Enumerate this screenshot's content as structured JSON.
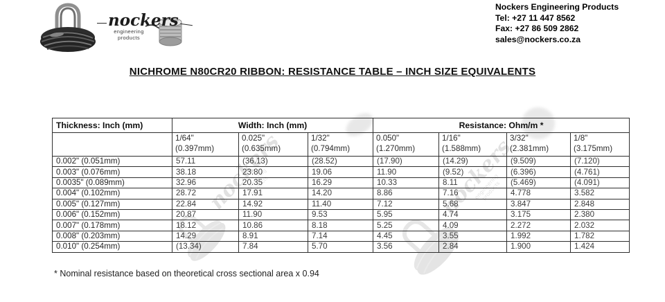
{
  "logo": {
    "brand_script": "nockers",
    "brand_sub1": "engineering",
    "brand_sub2": "products"
  },
  "contact": {
    "company": "Nockers Engineering Products",
    "tel": "Tel: +27 11 447 8562",
    "fax": "Fax: +27 86 509 2862",
    "email": "sales@nockers.co.za"
  },
  "title": "NICHROME N80CR20 RIBBON: RESISTANCE TABLE – INCH SIZE EQUIVALENTS",
  "table": {
    "corner_header": "Thickness: Inch (mm)",
    "group_headers": [
      {
        "label": "Width: Inch (mm)",
        "span": 3
      },
      {
        "label": "Resistance: Ohm/m *",
        "span": 4
      }
    ],
    "column_headers": [
      {
        "inch": "1/64\"",
        "mm": "(0.397mm)"
      },
      {
        "inch": "0.025\"",
        "mm": "(0.635mm)"
      },
      {
        "inch": "1/32\"",
        "mm": "(0.794mm)"
      },
      {
        "inch": "0.050\"",
        "mm": "(1.270mm)"
      },
      {
        "inch": "1/16\"",
        "mm": "(1.588mm)"
      },
      {
        "inch": "3/32\"",
        "mm": "(2.381mm)"
      },
      {
        "inch": "1/8\"",
        "mm": "(3.175mm)"
      }
    ],
    "rows": [
      {
        "thickness": "0.002\" (0.051mm)",
        "values": [
          "57.11",
          "(36.13)",
          "(28.52)",
          "(17.90)",
          "(14.29)",
          "(9.509)",
          "(7.120)"
        ]
      },
      {
        "thickness": "0.003\" (0.076mm)",
        "values": [
          "38.18",
          "23.80",
          "19.06",
          "11.90",
          "(9.52)",
          "(6.396)",
          "(4.761)"
        ]
      },
      {
        "thickness": "0.0035\" (0.089mm)",
        "values": [
          "32.96",
          "20.35",
          "16.29",
          "10.33",
          "8.11",
          "(5.469)",
          "(4.091)"
        ]
      },
      {
        "thickness": "0.004\" (0.102mm)",
        "values": [
          "28.72",
          "17.91",
          "14.20",
          "8.86",
          "7.16",
          "4.778",
          "3.582"
        ]
      },
      {
        "thickness": "0.005\" (0.127mm)",
        "values": [
          "22.84",
          "14.92",
          "11.40",
          "7.12",
          "5.68",
          "3.847",
          "2.848"
        ]
      },
      {
        "thickness": "0.006\" (0.152mm)",
        "values": [
          "20.87",
          "11.90",
          "9.53",
          "5.95",
          "4.74",
          "3.175",
          "2.380"
        ]
      },
      {
        "thickness": "0.007\" (0.178mm)",
        "values": [
          "18.12",
          "10.86",
          "8.18",
          "5.25",
          "4.09",
          "2.272",
          "2.032"
        ]
      },
      {
        "thickness": "0.008\" (0.203mm)",
        "values": [
          "14.29",
          "8.91",
          "7.14",
          "4.45",
          "3.55",
          "1.992",
          "1.782"
        ]
      },
      {
        "thickness": "0.010\" (0.254mm)",
        "values": [
          "(13.34)",
          "7.84",
          "5.70",
          "3.56",
          "2.84",
          "1.900",
          "1.424"
        ]
      }
    ]
  },
  "footnote": "* Nominal resistance based on theoretical cross sectional area x 0.94"
}
